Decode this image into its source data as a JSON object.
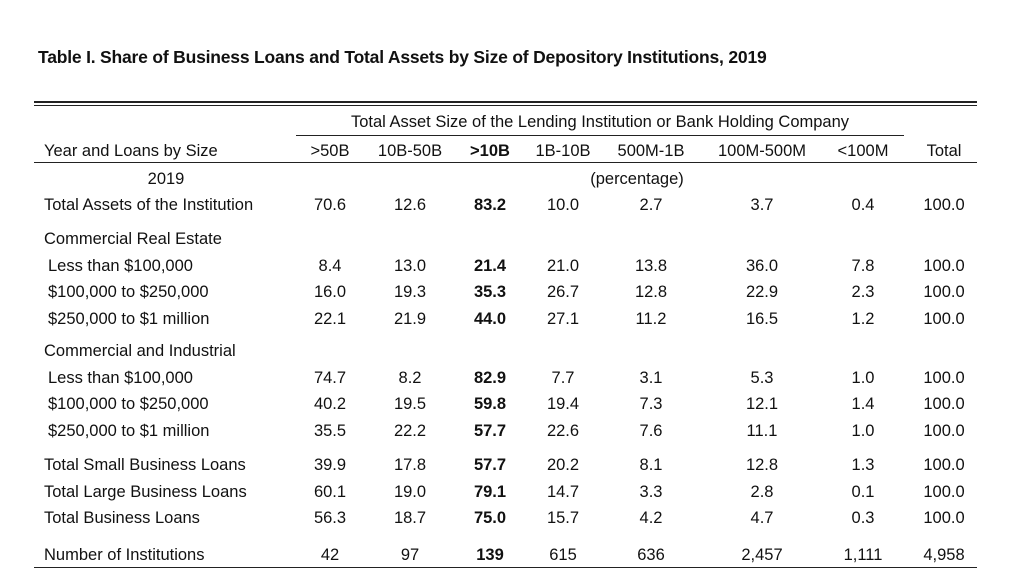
{
  "title": "Table I. Share of Business Loans and Total Assets by Size of Depository Institutions, 2019",
  "group_header": "Total Asset Size of the Lending Institution or Bank Holding Company",
  "row_header": "Year and Loans by Size",
  "columns": [
    ">50B",
    "10B-50B",
    ">10B",
    "1B-10B",
    "500M-1B",
    "100M-500M",
    "<100M",
    "Total"
  ],
  "year_label": "2019",
  "unit_label": "(percentage)",
  "rows": [
    {
      "label": "Total Assets of the Institution",
      "values": [
        "70.6",
        "12.6",
        "83.2",
        "10.0",
        "2.7",
        "3.7",
        "0.4",
        "100.0"
      ]
    },
    {
      "label": "Commercial Real Estate",
      "values": []
    },
    {
      "label": "Less than $100,000",
      "values": [
        "8.4",
        "13.0",
        "21.4",
        "21.0",
        "13.8",
        "36.0",
        "7.8",
        "100.0"
      ]
    },
    {
      "label": "$100,000 to $250,000",
      "values": [
        "16.0",
        "19.3",
        "35.3",
        "26.7",
        "12.8",
        "22.9",
        "2.3",
        "100.0"
      ]
    },
    {
      "label": "$250,000 to $1 million",
      "values": [
        "22.1",
        "21.9",
        "44.0",
        "27.1",
        "11.2",
        "16.5",
        "1.2",
        "100.0"
      ]
    },
    {
      "label": "Commercial and Industrial",
      "values": []
    },
    {
      "label": "Less than $100,000",
      "values": [
        "74.7",
        "8.2",
        "82.9",
        "7.7",
        "3.1",
        "5.3",
        "1.0",
        "100.0"
      ]
    },
    {
      "label": "$100,000 to $250,000",
      "values": [
        "40.2",
        "19.5",
        "59.8",
        "19.4",
        "7.3",
        "12.1",
        "1.4",
        "100.0"
      ]
    },
    {
      "label": "$250,000 to $1 million",
      "values": [
        "35.5",
        "22.2",
        "57.7",
        "22.6",
        "7.6",
        "11.1",
        "1.0",
        "100.0"
      ]
    },
    {
      "label": "Total Small Business Loans",
      "values": [
        "39.9",
        "17.8",
        "57.7",
        "20.2",
        "8.1",
        "12.8",
        "1.3",
        "100.0"
      ]
    },
    {
      "label": "Total Large Business Loans",
      "values": [
        "60.1",
        "19.0",
        "79.1",
        "14.7",
        "3.3",
        "2.8",
        "0.1",
        "100.0"
      ]
    },
    {
      "label": "Total Business Loans",
      "values": [
        "56.3",
        "18.7",
        "75.0",
        "15.7",
        "4.2",
        "4.7",
        "0.3",
        "100.0"
      ]
    },
    {
      "label": "Number of Institutions",
      "values": [
        "42",
        "97",
        "139",
        "615",
        "636",
        "2,457",
        "1,111",
        "4,958"
      ]
    }
  ]
}
